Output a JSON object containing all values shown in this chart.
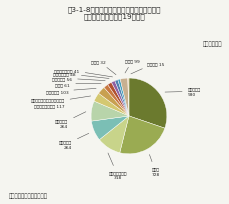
{
  "title": "図3-1-8　セメント業界の廃棄物・副産物の\n　　利用状況（平成19年度）",
  "unit": "単位：万トン",
  "source": "資料：（社）セメント協会",
  "slices": [
    {
      "label": "高炉スラグ\n930",
      "value": 930,
      "color": "#6b7a2e"
    },
    {
      "label": "石灰灰\n728",
      "value": 728,
      "color": "#9aab52"
    },
    {
      "label": "汚泥、スラッジ\n318",
      "value": 318,
      "color": "#c8d48a"
    },
    {
      "label": "建設発生土\n264",
      "value": 264,
      "color": "#7bbfb5"
    },
    {
      "label": "副産石こう\n264",
      "value": 264,
      "color": "#b8d4aa"
    },
    {
      "label": "燃えがら（石炭灰は除く）、\nばいじん、ダスト 117",
      "value": 117,
      "color": "#d4c870"
    },
    {
      "label": "家電灰澱粉 103",
      "value": 103,
      "color": "#c8a050"
    },
    {
      "label": "鋳物砂 61",
      "value": 61,
      "color": "#c87840"
    },
    {
      "label": "製鋼スラグ 56",
      "value": 56,
      "color": "#b05030"
    },
    {
      "label": "再生油・廃油 48",
      "value": 48,
      "color": "#9060a0"
    },
    {
      "label": "廃プラスチック 41",
      "value": 41,
      "color": "#5080b0"
    },
    {
      "label": "木くず 32",
      "value": 32,
      "color": "#40a0c0"
    },
    {
      "label": "その他 99",
      "value": 99,
      "color": "#c8b090"
    },
    {
      "label": "廃タイヤ 15",
      "value": 15,
      "color": "#e8d0a0"
    }
  ]
}
